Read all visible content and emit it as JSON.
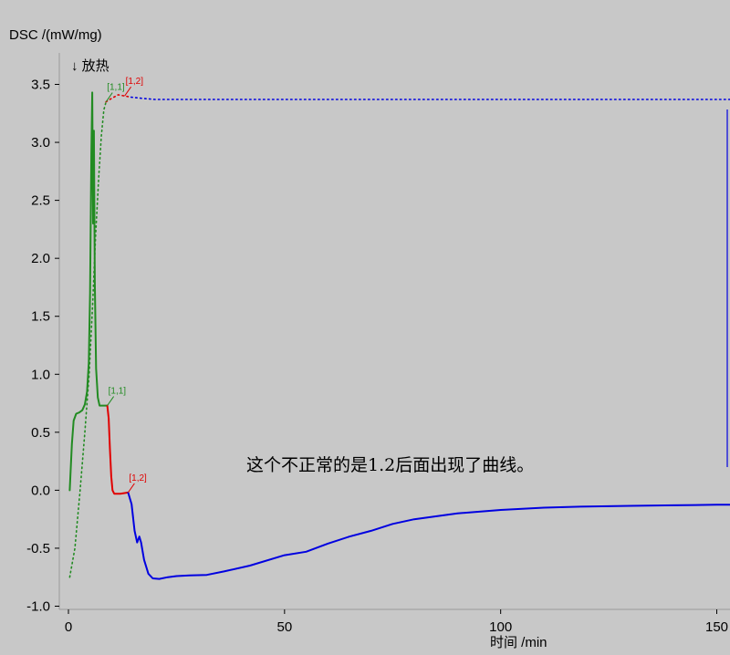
{
  "chart_data": {
    "type": "line",
    "ylabel": "DSC /(mW/mg)",
    "xlabel": "时间 /min",
    "exo_label": "↓ 放热",
    "annotation": "这个不正常的是1.2后面出现了曲线。",
    "xlim": [
      0,
      153
    ],
    "ylim": [
      -1.0,
      3.6
    ],
    "x_ticks": [
      0,
      50,
      100,
      150
    ],
    "y_ticks": [
      -1.0,
      -0.5,
      0.0,
      0.5,
      1.0,
      1.5,
      2.0,
      2.5,
      3.0,
      3.5
    ],
    "x_tick_labels": [
      "0",
      "50",
      "100",
      "150"
    ],
    "y_tick_labels": [
      "-1.0",
      "-0.5",
      "0.0",
      "0.5",
      "1.0",
      "1.5",
      "2.0",
      "2.5",
      "3.0",
      "3.5"
    ],
    "grid": false,
    "series": [
      {
        "color": "#228b22",
        "style": "solid",
        "points": [
          [
            0.3,
            0.0
          ],
          [
            0.8,
            0.4
          ],
          [
            1.2,
            0.6
          ],
          [
            1.8,
            0.66
          ],
          [
            2.5,
            0.67
          ],
          [
            3.2,
            0.69
          ],
          [
            3.8,
            0.74
          ],
          [
            4.3,
            0.85
          ],
          [
            4.7,
            1.1
          ],
          [
            5.0,
            1.7
          ],
          [
            5.3,
            2.9
          ],
          [
            5.5,
            3.43
          ],
          [
            5.7,
            2.3
          ],
          [
            5.9,
            3.1
          ],
          [
            6.1,
            1.8
          ],
          [
            6.4,
            1.05
          ],
          [
            6.8,
            0.8
          ],
          [
            7.2,
            0.73
          ],
          [
            8.0,
            0.73
          ],
          [
            9.0,
            0.73
          ]
        ]
      },
      {
        "color": "#e00000",
        "style": "solid",
        "points": [
          [
            9.0,
            0.73
          ],
          [
            9.3,
            0.62
          ],
          [
            9.6,
            0.35
          ],
          [
            9.9,
            0.12
          ],
          [
            10.2,
            0.0
          ],
          [
            10.6,
            -0.03
          ],
          [
            12.0,
            -0.03
          ],
          [
            13.8,
            -0.02
          ]
        ]
      },
      {
        "color": "#0000e0",
        "style": "solid",
        "points": [
          [
            13.8,
            -0.02
          ],
          [
            14.6,
            -0.12
          ],
          [
            15.3,
            -0.35
          ],
          [
            15.9,
            -0.45
          ],
          [
            16.4,
            -0.4
          ],
          [
            16.8,
            -0.45
          ],
          [
            17.5,
            -0.6
          ],
          [
            18.5,
            -0.72
          ],
          [
            19.5,
            -0.76
          ],
          [
            21.0,
            -0.765
          ],
          [
            23.0,
            -0.75
          ],
          [
            25.0,
            -0.74
          ],
          [
            28.0,
            -0.735
          ],
          [
            32.0,
            -0.73
          ],
          [
            36.0,
            -0.7
          ],
          [
            42.0,
            -0.65
          ],
          [
            50.0,
            -0.56
          ],
          [
            55.0,
            -0.53
          ],
          [
            60.0,
            -0.46
          ],
          [
            65.0,
            -0.4
          ],
          [
            70.0,
            -0.35
          ],
          [
            75.0,
            -0.29
          ],
          [
            80.0,
            -0.25
          ],
          [
            90.0,
            -0.2
          ],
          [
            100.0,
            -0.17
          ],
          [
            110.0,
            -0.15
          ],
          [
            120.0,
            -0.14
          ],
          [
            130.0,
            -0.135
          ],
          [
            140.0,
            -0.13
          ],
          [
            150.0,
            -0.125
          ],
          [
            153.0,
            -0.125
          ]
        ]
      },
      {
        "color": "#228b22",
        "style": "dotted",
        "points": [
          [
            0.3,
            -0.75
          ],
          [
            1.5,
            -0.5
          ],
          [
            2.7,
            0.0
          ],
          [
            3.8,
            0.5
          ],
          [
            4.8,
            1.0
          ],
          [
            5.6,
            1.6
          ],
          [
            6.3,
            2.2
          ],
          [
            7.0,
            2.7
          ],
          [
            7.6,
            3.05
          ],
          [
            8.2,
            3.28
          ],
          [
            8.7,
            3.35
          ]
        ]
      },
      {
        "color": "#e00000",
        "style": "dotted",
        "points": [
          [
            8.7,
            3.35
          ],
          [
            10.0,
            3.38
          ],
          [
            11.5,
            3.41
          ],
          [
            13.0,
            3.4
          ],
          [
            14.5,
            3.39
          ]
        ]
      },
      {
        "color": "#0000e0",
        "style": "dotted",
        "points": [
          [
            14.5,
            3.39
          ],
          [
            17.0,
            3.38
          ],
          [
            20.0,
            3.37
          ],
          [
            30.0,
            3.37
          ],
          [
            60.0,
            3.37
          ],
          [
            100.0,
            3.37
          ],
          [
            153.0,
            3.37
          ]
        ]
      }
    ],
    "segment_labels": [
      {
        "text": "[1,1]",
        "color": "#228b22",
        "x": 9.0,
        "y": 0.73
      },
      {
        "text": "[1,2]",
        "color": "#e00000",
        "x": 13.8,
        "y": -0.02
      },
      {
        "text": "[1,1]",
        "color": "#228b22",
        "x": 8.7,
        "y": 3.35
      },
      {
        "text": "[1,2]",
        "color": "#e00000",
        "x": 13.0,
        "y": 3.4
      }
    ]
  }
}
